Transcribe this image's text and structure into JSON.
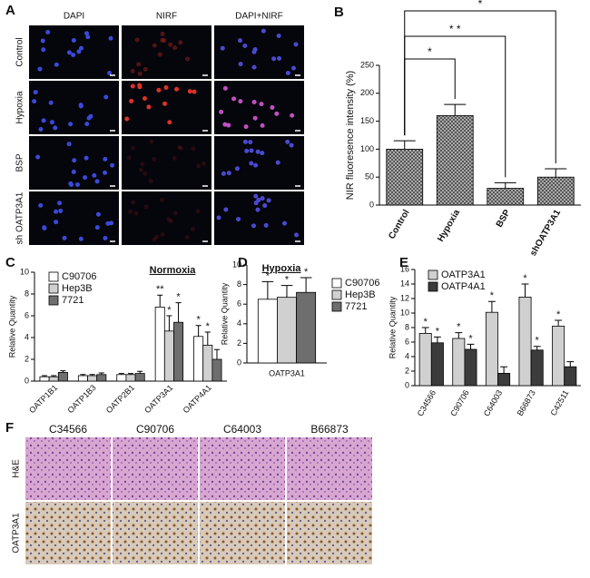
{
  "panel_labels": [
    "A",
    "B",
    "C",
    "D",
    "E",
    "F"
  ],
  "panel_a": {
    "columns": [
      "DAPI",
      "NIRF",
      "DAPI+NIRF"
    ],
    "rows": [
      "Control",
      "Hypoxia",
      "BSP",
      "sh OATP3A1"
    ]
  },
  "panel_f": {
    "columns": [
      "C34566",
      "C90706",
      "C64003",
      "B66873"
    ],
    "rows": [
      "H&E",
      "OATP3A1"
    ]
  },
  "chart_data": [
    {
      "type": "bar",
      "ylabel": "NIR fluoresence intensity (%)",
      "categories": [
        "Control",
        "Hypoxia",
        "BSP",
        "shOATP3A1"
      ],
      "series": [
        {
          "color": "#9a9a9a",
          "hatched": true,
          "values": [
            100,
            160,
            30,
            50
          ],
          "errors": [
            15,
            20,
            10,
            15
          ]
        }
      ],
      "comparisons": [
        {
          "label": "*",
          "categories": [
            "Control",
            "shOATP3A1"
          ]
        },
        {
          "label": "* *",
          "categories": [
            "Control",
            "BSP"
          ]
        },
        {
          "label": "*",
          "categories": [
            "Control",
            "Hypoxia"
          ]
        }
      ],
      "ylim": [
        0,
        250
      ],
      "yticks": [
        0,
        50,
        100,
        150,
        200,
        250
      ]
    },
    {
      "type": "bar",
      "title": "Normoxia",
      "ylabel": "Relative Quantity",
      "categories": [
        "OATP1B1",
        "OATP1B3",
        "OATP2B1",
        "OATP3A1",
        "OATP4A1"
      ],
      "series": [
        {
          "name": "C90706",
          "color": "#ffffff",
          "values": [
            0.4,
            0.5,
            0.6,
            6.8,
            4.1
          ],
          "errors": [
            0.1,
            0.1,
            0.1,
            1.1,
            1.0
          ],
          "annotations": [
            null,
            null,
            null,
            "**",
            "*"
          ]
        },
        {
          "name": "Hep3B",
          "color": "#d0d0d0",
          "values": [
            0.4,
            0.5,
            0.6,
            4.6,
            3.3
          ],
          "errors": [
            0.1,
            0.1,
            0.1,
            1.4,
            1.2
          ],
          "annotations": [
            null,
            null,
            null,
            "*",
            "*"
          ]
        },
        {
          "name": "7721",
          "color": "#6e6e6e",
          "values": [
            0.8,
            0.6,
            0.7,
            5.4,
            2.0
          ],
          "errors": [
            0.15,
            0.15,
            0.2,
            1.8,
            0.9
          ],
          "annotations": [
            null,
            null,
            null,
            "*",
            null
          ]
        }
      ],
      "legend": "top-left",
      "ylim": [
        0,
        10
      ],
      "yticks": [
        0,
        2,
        4,
        6,
        8,
        10
      ]
    },
    {
      "type": "bar",
      "title": "Hypoxia",
      "ylabel": "Relative Quantity",
      "categories": [
        "OATP3A1"
      ],
      "series": [
        {
          "name": "C90706",
          "color": "#ffffff",
          "values": [
            6.5
          ],
          "errors": [
            1.8
          ],
          "annotations": [
            "*"
          ]
        },
        {
          "name": "Hep3B",
          "color": "#d0d0d0",
          "values": [
            6.7
          ],
          "errors": [
            1.2
          ],
          "annotations": [
            "*"
          ]
        },
        {
          "name": "7721",
          "color": "#6e6e6e",
          "values": [
            7.2
          ],
          "errors": [
            1.5
          ],
          "annotations": [
            "*"
          ]
        }
      ],
      "legend": "right",
      "ylim": [
        0,
        10
      ],
      "yticks": [
        0,
        2,
        4,
        6,
        8,
        10
      ]
    },
    {
      "type": "bar",
      "ylabel": "Relative Quantity",
      "categories": [
        "C34566",
        "C90706",
        "C64003",
        "B66873",
        "C42511"
      ],
      "series": [
        {
          "name": "OATP3A1",
          "color": "#d0d0d0",
          "values": [
            7.2,
            6.5,
            10.1,
            12.2,
            8.2
          ],
          "errors": [
            0.8,
            0.8,
            1.5,
            1.8,
            0.8
          ],
          "annotations": [
            "*",
            "*",
            "*",
            "*",
            "*"
          ]
        },
        {
          "name": "OATP4A1",
          "color": "#3c3c3c",
          "values": [
            5.9,
            5.0,
            1.7,
            4.9,
            2.6
          ],
          "errors": [
            0.8,
            0.7,
            0.9,
            0.5,
            0.7
          ],
          "annotations": [
            "*",
            "*",
            null,
            "*",
            null
          ]
        }
      ],
      "legend": "top-left",
      "ylim": [
        0,
        16
      ],
      "yticks": [
        0,
        2,
        4,
        6,
        8,
        10,
        12,
        14,
        16
      ]
    }
  ]
}
